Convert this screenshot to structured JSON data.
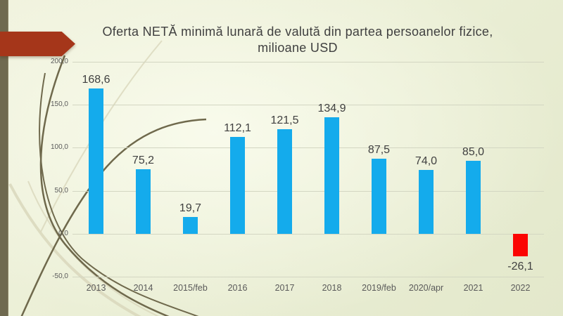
{
  "display": {
    "title_lines": [
      "Oferta NETĂ minimă lunară de valută din partea persoanelor fizice,",
      "milioane USD"
    ]
  },
  "chart_data": {
    "type": "bar",
    "title": "Oferta NETĂ minimă lunară de valută din partea persoanelor fizice, milioane USD",
    "xlabel": "",
    "ylabel": "",
    "categories": [
      "2013",
      "2014",
      "2015/feb",
      "2016",
      "2017",
      "2018",
      "2019/feb",
      "2020/apr",
      "2021",
      "2022"
    ],
    "values": [
      168.6,
      75.2,
      19.7,
      112.1,
      121.5,
      134.9,
      87.5,
      74.0,
      85.0,
      -26.1
    ],
    "value_labels": [
      "168,6",
      "75,2",
      "19,7",
      "112,1",
      "121,5",
      "134,9",
      "87,5",
      "74,0",
      "85,0",
      "-26,1"
    ],
    "y_ticks": [
      200,
      150,
      100,
      50,
      0,
      -50
    ],
    "y_tick_labels": [
      "200,0",
      "150,0",
      "100,0",
      "50,0",
      "0,0",
      "-50,0"
    ],
    "ylim": [
      -50,
      200
    ],
    "grid": true,
    "legend": false,
    "bar_color": "#14abec",
    "negative_bar_color": "#fb0502"
  },
  "theme": {
    "accent_bar_color": "#6f6a50",
    "arrow_color": "#a5361a",
    "wisp_dark_color": "#6f694c",
    "wisp_light_color": "#d9d7bc",
    "title_color": "#404040",
    "data_label_color": "#404040",
    "axis_text_color": "#5a5a5a",
    "gridline_color": "#d3d6c2"
  }
}
